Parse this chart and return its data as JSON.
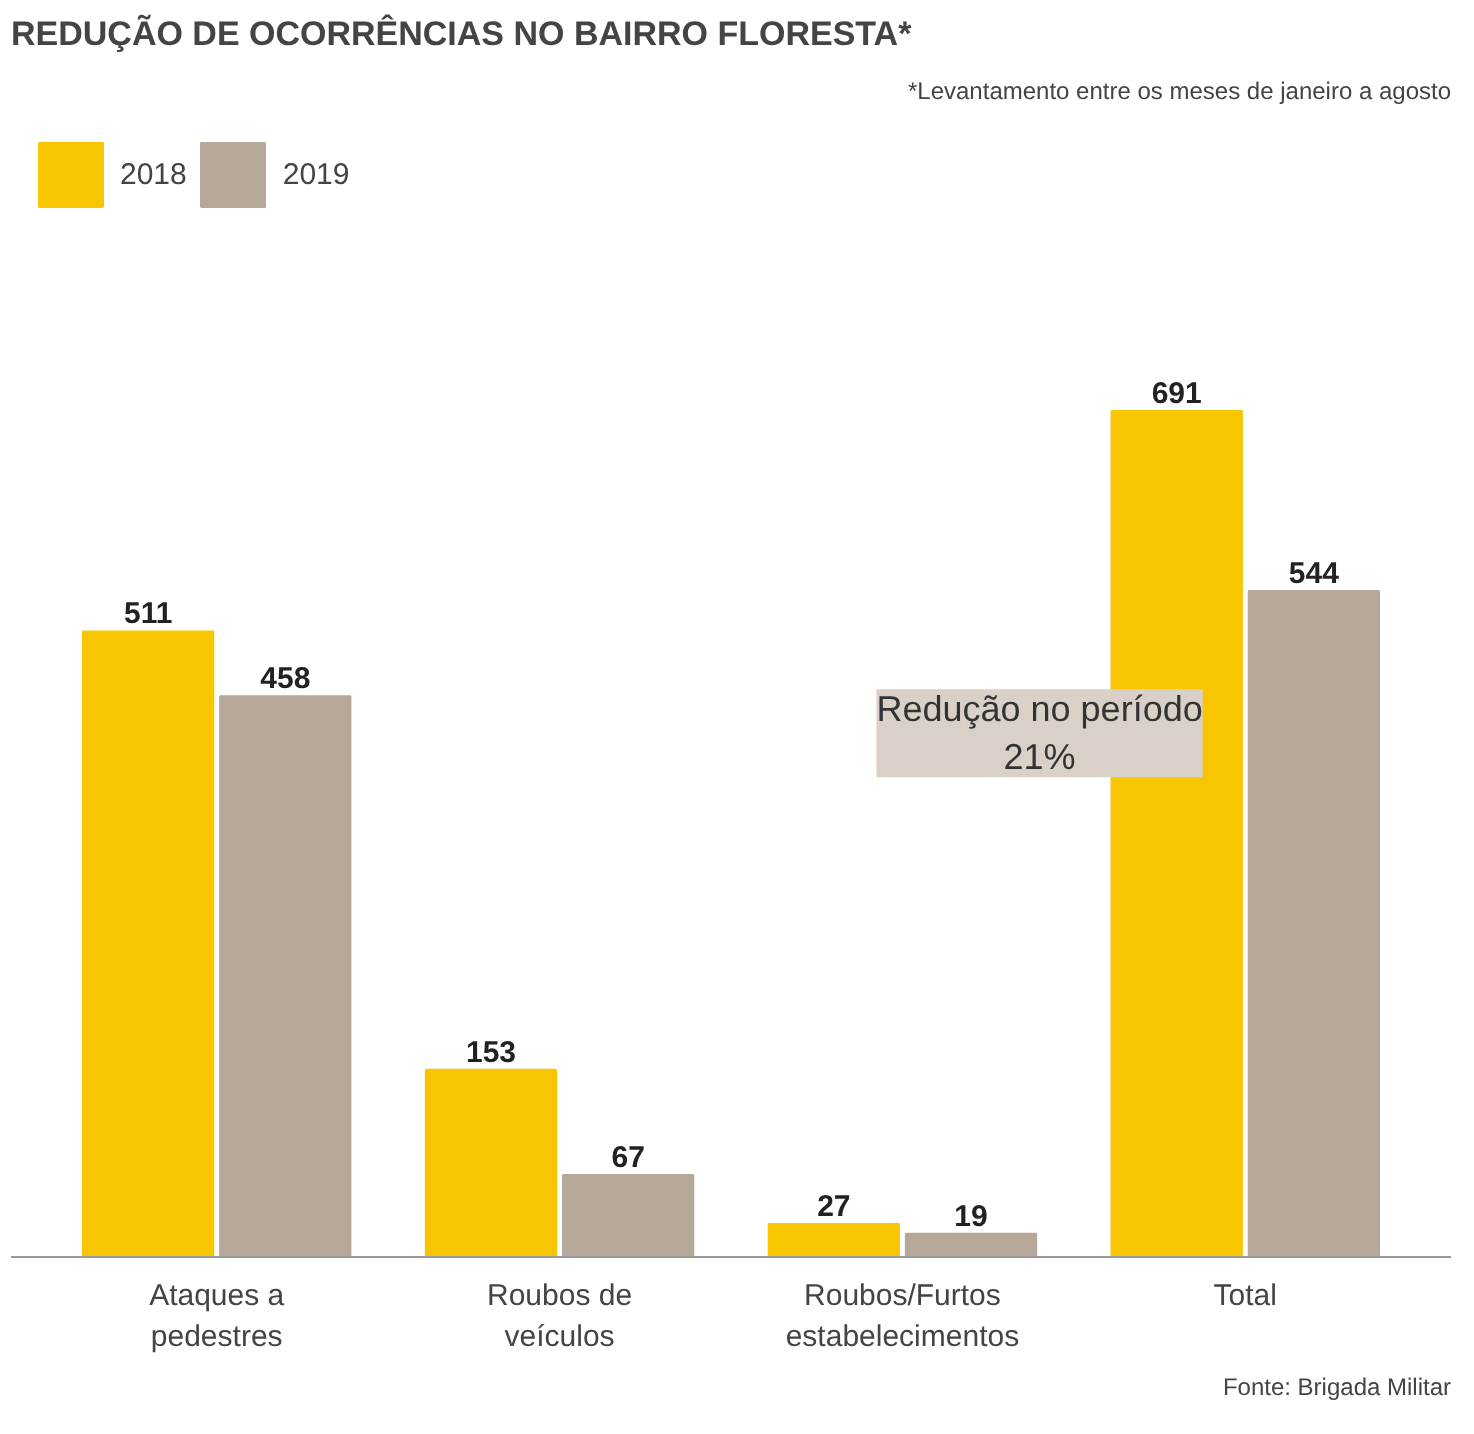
{
  "chart_data": {
    "type": "bar",
    "title": "REDUÇÃO DE OCORRÊNCIAS NO BAIRRO FLORESTA*",
    "categories": [
      "Ataques a\npedestres",
      "Roubos de\nveículos",
      "Roubos/Furtos\nestabelecimentos",
      "Total"
    ],
    "series": [
      {
        "name": "2018",
        "color": "#f7c600",
        "values": [
          511,
          153,
          27,
          691
        ]
      },
      {
        "name": "2019",
        "color": "#b5a898",
        "values": [
          458,
          67,
          19,
          544
        ]
      }
    ],
    "data_labels": true,
    "grid": false,
    "legend": "top left",
    "annotations": [
      "*Levantamento entre os meses de janeiro a agosto",
      "Redução no período\n21%",
      "Fonte: Brigada Militar"
    ]
  }
}
